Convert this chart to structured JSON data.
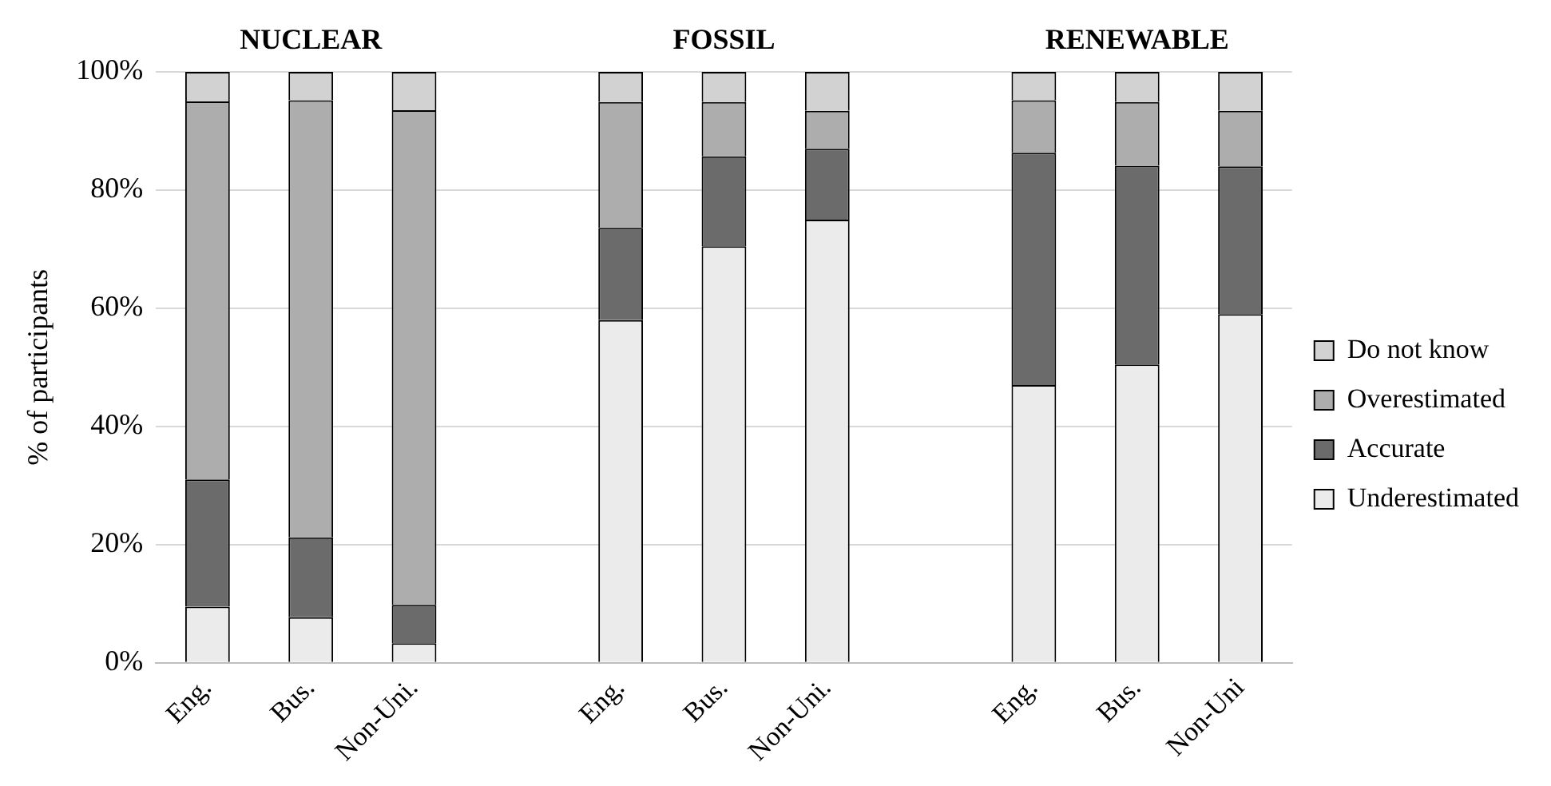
{
  "chart_data": {
    "type": "bar",
    "stacked": true,
    "annotations": [
      "NUCLEAR",
      "FOSSIL",
      "RENEWABLE"
    ],
    "ylabel": "% of participants",
    "categories": [
      "Eng.",
      "Bus.",
      "Non-Uni.",
      null,
      "Eng.",
      "Bus.",
      "Non-Uni.",
      null,
      "Eng.",
      "Bus.",
      "Non-Uni"
    ],
    "series": [
      {
        "name": "Underestimated",
        "color": "#ebebeb",
        "values": [
          9.5,
          7.7,
          3.3,
          null,
          58,
          70.5,
          75,
          null,
          47,
          50.5,
          59
        ]
      },
      {
        "name": "Accurate",
        "color": "#6b6b6b",
        "values": [
          21.5,
          13.5,
          6.5,
          null,
          15.6,
          15.2,
          12,
          null,
          39.3,
          33.6,
          25
        ]
      },
      {
        "name": "Overestimated",
        "color": "#adadad",
        "values": [
          64,
          74,
          83.7,
          null,
          21.3,
          9.2,
          6.4,
          null,
          8.9,
          10.8,
          9.4
        ]
      },
      {
        "name": "Do not know",
        "color": "#d2d2d2",
        "values": [
          5,
          4.8,
          6.5,
          null,
          5.1,
          5.1,
          6.6,
          null,
          4.8,
          5.1,
          6.6
        ]
      }
    ],
    "ylim": [
      0,
      100
    ],
    "yticks": [
      {
        "value": 0,
        "label": "0%"
      },
      {
        "value": 20,
        "label": "20%"
      },
      {
        "value": 40,
        "label": "40%"
      },
      {
        "value": 60,
        "label": "60%"
      },
      {
        "value": 80,
        "label": "80%"
      },
      {
        "value": 100,
        "label": "100%"
      }
    ],
    "grid": "y",
    "legend": "right"
  }
}
